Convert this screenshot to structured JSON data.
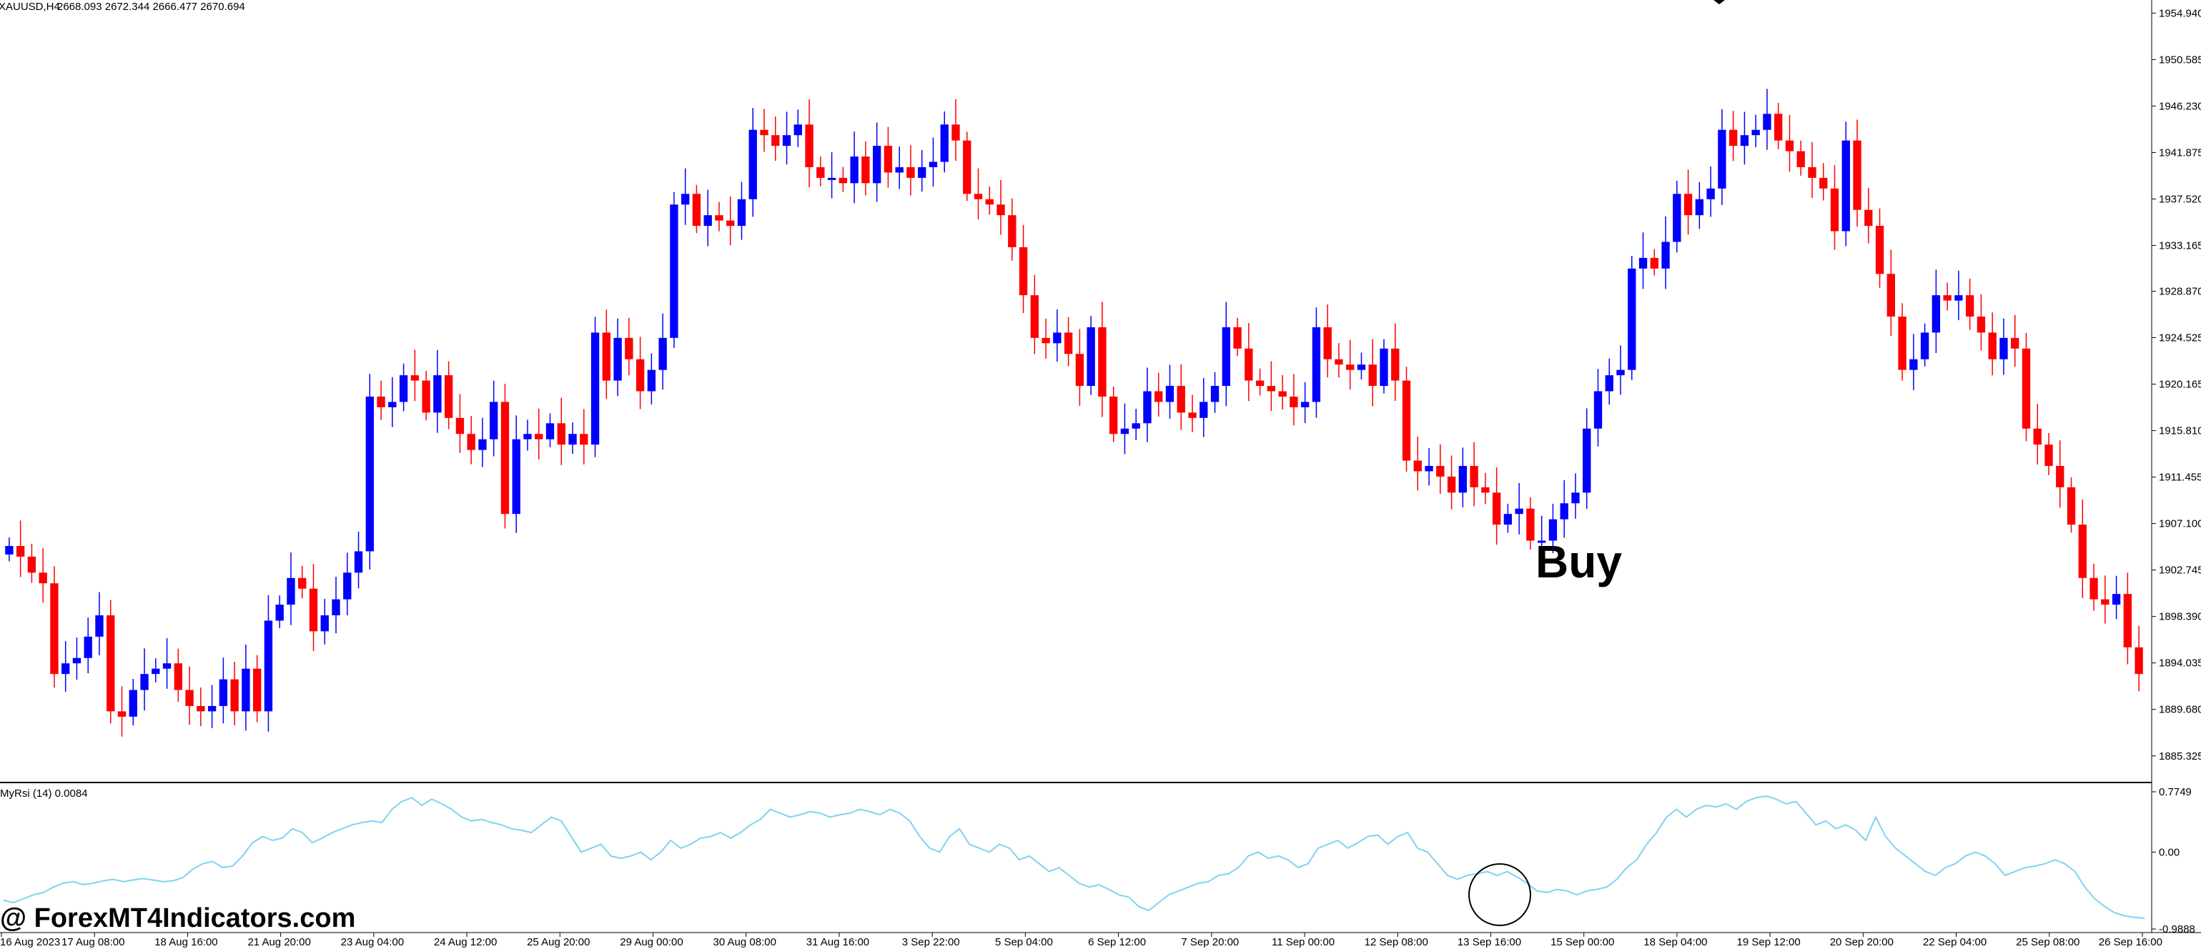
{
  "header": {
    "symbol_timeframe": "XAUUSD,H4",
    "ohlc": "2668.093 2672.344 2666.477 2670.694"
  },
  "indicator": {
    "label": "MyRsi (14) 0.0084",
    "ticks": [
      "0.7749",
      "0.00",
      "-0.9888"
    ]
  },
  "annotation": {
    "signal_label": "Buy"
  },
  "watermark": {
    "text": "@ ForexMT4Indicators.com"
  },
  "colors": {
    "bull": "#0000ff",
    "bear": "#ff0000",
    "rsi_line": "#7fd3f0",
    "axis": "#000000",
    "background": "#ffffff"
  },
  "chart_data": {
    "type": "candlestick",
    "price_axis_labels": [
      "1954.940",
      "1950.585",
      "1946.230",
      "1941.875",
      "1937.520",
      "1933.165",
      "1928.870",
      "1924.525",
      "1920.165",
      "1915.810",
      "1911.455",
      "1907.100",
      "1902.745",
      "1898.390",
      "1894.035",
      "1889.680",
      "1885.325"
    ],
    "price_range": [
      1883.5,
      1955.5
    ],
    "time_axis_labels": [
      "16 Aug 2023",
      "17 Aug 08:00",
      "18 Aug 16:00",
      "21 Aug 20:00",
      "23 Aug 04:00",
      "24 Aug 12:00",
      "25 Aug 20:00",
      "29 Aug 00:00",
      "30 Aug 08:00",
      "31 Aug 16:00",
      "3 Sep 22:00",
      "5 Sep 04:00",
      "6 Sep 12:00",
      "7 Sep 20:00",
      "11 Sep 00:00",
      "12 Sep 08:00",
      "13 Sep 16:00",
      "15 Sep 00:00",
      "18 Sep 04:00",
      "19 Sep 12:00",
      "20 Sep 20:00",
      "22 Sep 04:00",
      "25 Sep 08:00",
      "26 Sep 16:00"
    ],
    "closes": [
      1905.0,
      1904.0,
      1902.5,
      1901.5,
      1893.0,
      1894.0,
      1894.5,
      1896.5,
      1898.5,
      1889.5,
      1889.0,
      1891.5,
      1893.0,
      1893.5,
      1894.0,
      1891.5,
      1890.0,
      1889.5,
      1890.0,
      1892.5,
      1889.5,
      1893.5,
      1889.5,
      1898.0,
      1899.5,
      1902.0,
      1901.0,
      1897.0,
      1898.5,
      1900.0,
      1902.5,
      1904.5,
      1919.0,
      1918.0,
      1918.5,
      1921.0,
      1920.5,
      1917.5,
      1921.0,
      1917.0,
      1915.5,
      1914.0,
      1915.0,
      1918.5,
      1908.0,
      1915.0,
      1915.5,
      1915.0,
      1916.5,
      1914.5,
      1915.5,
      1914.5,
      1925.0,
      1920.5,
      1924.5,
      1922.5,
      1919.5,
      1921.5,
      1924.5,
      1937.0,
      1938.0,
      1935.0,
      1936.0,
      1935.5,
      1935.0,
      1937.5,
      1944.0,
      1943.5,
      1942.5,
      1943.5,
      1944.5,
      1940.5,
      1939.5,
      1939.5,
      1939.0,
      1941.5,
      1939.0,
      1942.5,
      1940.0,
      1940.5,
      1939.5,
      1940.5,
      1941.0,
      1944.5,
      1943.0,
      1938.0,
      1937.5,
      1937.0,
      1936.0,
      1933.0,
      1928.5,
      1924.5,
      1924.0,
      1925.0,
      1923.0,
      1920.0,
      1925.5,
      1919.0,
      1915.5,
      1916.0,
      1916.5,
      1919.5,
      1918.5,
      1920.0,
      1917.5,
      1917.0,
      1918.5,
      1920.0,
      1925.5,
      1923.5,
      1920.5,
      1920.0,
      1919.5,
      1919.0,
      1918.0,
      1918.5,
      1925.5,
      1922.5,
      1922.0,
      1921.5,
      1922.0,
      1920.0,
      1923.5,
      1920.5,
      1913.0,
      1912.0,
      1912.5,
      1911.5,
      1910.0,
      1912.5,
      1910.5,
      1910.0,
      1907.0,
      1908.0,
      1908.5,
      1905.5,
      1905.5,
      1907.5,
      1909.0,
      1910.0,
      1916.0,
      1919.5,
      1921.0,
      1921.5,
      1931.0,
      1932.0,
      1931.0,
      1933.5,
      1938.0,
      1936.0,
      1937.5,
      1938.5,
      1944.0,
      1942.5,
      1943.5,
      1944.0,
      1945.5,
      1943.0,
      1942.0,
      1940.5,
      1939.5,
      1938.5,
      1934.5,
      1943.0,
      1936.5,
      1935.0,
      1930.5,
      1926.5,
      1921.5,
      1922.5,
      1925.0,
      1928.5,
      1928.0,
      1928.5,
      1926.5,
      1925.0,
      1922.5,
      1924.5,
      1923.5,
      1916.0,
      1914.5,
      1912.5,
      1910.5,
      1907.0,
      1902.0,
      1900.0,
      1899.5,
      1900.5,
      1895.5,
      1893.0
    ],
    "rsi_axis_range": [
      -0.9888,
      0.7749
    ],
    "rsi_values": [
      -0.62,
      -0.65,
      -0.6,
      -0.55,
      -0.52,
      -0.45,
      -0.4,
      -0.38,
      -0.42,
      -0.4,
      -0.37,
      -0.35,
      -0.38,
      -0.36,
      -0.34,
      -0.36,
      -0.38,
      -0.37,
      -0.33,
      -0.22,
      -0.15,
      -0.12,
      -0.2,
      -0.18,
      -0.05,
      0.12,
      0.2,
      0.15,
      0.18,
      0.3,
      0.25,
      0.12,
      0.18,
      0.25,
      0.3,
      0.35,
      0.38,
      0.4,
      0.38,
      0.55,
      0.65,
      0.7,
      0.6,
      0.68,
      0.62,
      0.55,
      0.45,
      0.4,
      0.42,
      0.38,
      0.35,
      0.3,
      0.28,
      0.25,
      0.35,
      0.45,
      0.4,
      0.2,
      0.0,
      0.05,
      0.1,
      -0.05,
      -0.08,
      -0.05,
      0.0,
      -0.1,
      0.0,
      0.15,
      0.05,
      0.1,
      0.18,
      0.2,
      0.25,
      0.18,
      0.25,
      0.35,
      0.42,
      0.55,
      0.5,
      0.45,
      0.48,
      0.52,
      0.5,
      0.45,
      0.48,
      0.5,
      0.55,
      0.52,
      0.48,
      0.55,
      0.5,
      0.4,
      0.2,
      0.05,
      0.0,
      0.2,
      0.3,
      0.1,
      0.05,
      0.0,
      0.1,
      0.05,
      -0.1,
      -0.05,
      -0.15,
      -0.25,
      -0.2,
      -0.3,
      -0.4,
      -0.45,
      -0.42,
      -0.48,
      -0.55,
      -0.58,
      -0.7,
      -0.75,
      -0.65,
      -0.55,
      -0.5,
      -0.45,
      -0.4,
      -0.38,
      -0.3,
      -0.28,
      -0.2,
      -0.05,
      0.0,
      -0.08,
      -0.05,
      -0.1,
      -0.2,
      -0.15,
      0.05,
      0.1,
      0.15,
      0.05,
      0.12,
      0.2,
      0.22,
      0.1,
      0.2,
      0.25,
      0.05,
      0.0,
      -0.15,
      -0.3,
      -0.35,
      -0.3,
      -0.28,
      -0.25,
      -0.3,
      -0.25,
      -0.32,
      -0.4,
      -0.5,
      -0.52,
      -0.48,
      -0.5,
      -0.55,
      -0.5,
      -0.48,
      -0.45,
      -0.35,
      -0.2,
      -0.1,
      0.1,
      0.25,
      0.45,
      0.55,
      0.45,
      0.55,
      0.6,
      0.58,
      0.62,
      0.55,
      0.65,
      0.7,
      0.72,
      0.68,
      0.62,
      0.65,
      0.5,
      0.35,
      0.4,
      0.3,
      0.35,
      0.28,
      0.15,
      0.45,
      0.2,
      0.05,
      -0.05,
      -0.15,
      -0.25,
      -0.3,
      -0.2,
      -0.15,
      -0.05,
      0.0,
      -0.05,
      -0.15,
      -0.3,
      -0.25,
      -0.2,
      -0.18,
      -0.15,
      -0.1,
      -0.15,
      -0.25,
      -0.45,
      -0.6,
      -0.7,
      -0.78,
      -0.82,
      -0.84,
      -0.85
    ]
  }
}
